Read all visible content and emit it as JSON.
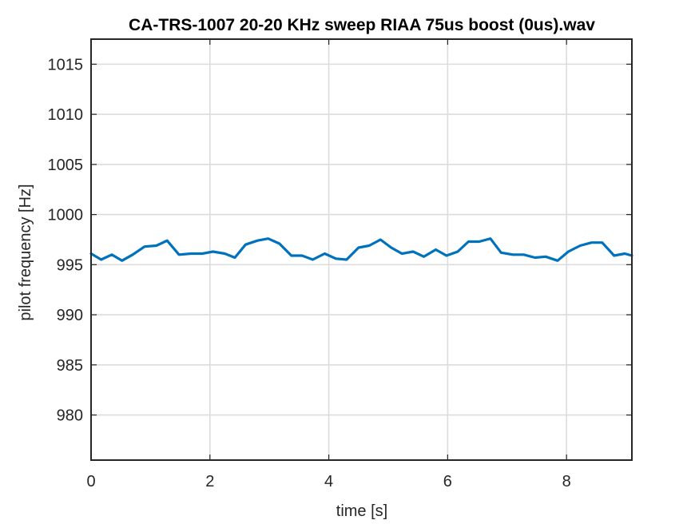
{
  "chart_data": {
    "type": "line",
    "title": "CA-TRS-1007 20-20 KHz sweep RIAA 75us boost (0us).wav",
    "xlabel": "time [s]",
    "ylabel": "pilot frequency [Hz]",
    "xlim": [
      0,
      9.1
    ],
    "ylim": [
      975.5,
      1017.5
    ],
    "xticks": [
      0,
      2,
      4,
      6,
      8
    ],
    "xtick_labels": [
      "0",
      "2",
      "4",
      "6",
      "8"
    ],
    "yticks": [
      980,
      985,
      990,
      995,
      1000,
      1005,
      1010,
      1015
    ],
    "ytick_labels": [
      "980",
      "985",
      "990",
      "995",
      "1000",
      "1005",
      "1010",
      "1015"
    ],
    "grid": true,
    "series": [
      {
        "color": "#0072BD",
        "x": [
          0,
          0.17,
          0.35,
          0.52,
          0.7,
          0.9,
          1.1,
          1.28,
          1.48,
          1.68,
          1.87,
          2.05,
          2.25,
          2.42,
          2.6,
          2.8,
          2.98,
          3.17,
          3.37,
          3.55,
          3.73,
          3.93,
          4.12,
          4.3,
          4.5,
          4.68,
          4.87,
          5.05,
          5.23,
          5.42,
          5.6,
          5.8,
          5.98,
          6.17,
          6.35,
          6.53,
          6.72,
          6.9,
          7.1,
          7.28,
          7.47,
          7.65,
          7.85,
          8.03,
          8.23,
          8.42,
          8.6,
          8.8,
          8.98,
          9.1
        ],
        "y": [
          996.1,
          995.5,
          996.0,
          995.4,
          996.0,
          996.8,
          996.9,
          997.4,
          996.0,
          996.1,
          996.1,
          996.3,
          996.1,
          995.7,
          997.0,
          997.4,
          997.6,
          997.1,
          995.9,
          995.9,
          995.5,
          996.1,
          995.6,
          995.5,
          996.7,
          996.9,
          997.5,
          996.7,
          996.1,
          996.3,
          995.8,
          996.5,
          995.9,
          996.3,
          997.3,
          997.3,
          997.6,
          996.2,
          996.0,
          996.0,
          995.7,
          995.8,
          995.4,
          996.3,
          996.9,
          997.2,
          997.2,
          995.9,
          996.1,
          995.9
        ]
      }
    ]
  }
}
